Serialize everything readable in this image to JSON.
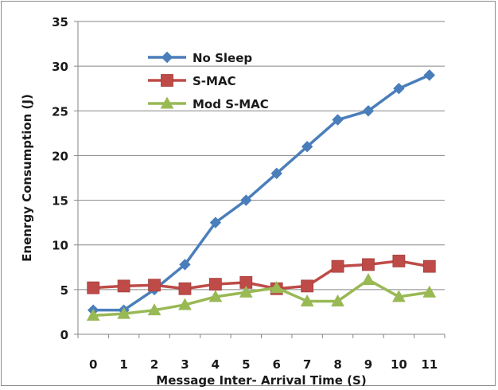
{
  "chart_data": {
    "type": "line",
    "title": "",
    "xlabel": "Message Inter- Arrival Time (S)",
    "ylabel": "Enenrgy Consumption (J)",
    "x": [
      0,
      1,
      2,
      3,
      4,
      5,
      6,
      7,
      8,
      9,
      10,
      11
    ],
    "ylim": [
      0,
      35
    ],
    "yticks": [
      0,
      5,
      10,
      15,
      20,
      25,
      30,
      35
    ],
    "ytick_labels": [
      "0",
      "5",
      "10",
      "15",
      "20",
      "25",
      "30",
      "35"
    ],
    "xtick_labels": [
      "0",
      "1",
      "2",
      "3",
      "4",
      "5",
      "6",
      "7",
      "8",
      "9",
      "10",
      "11"
    ],
    "grid": "horizontal",
    "legend_position": "top-left",
    "series": [
      {
        "name": "No Sleep",
        "color": "#4a7ebb",
        "marker": "diamond",
        "values": [
          2.7,
          2.7,
          5.0,
          7.8,
          12.5,
          15.0,
          18.0,
          21.0,
          24.0,
          25.0,
          27.5,
          29.0
        ]
      },
      {
        "name": "S-MAC",
        "color": "#be4b48",
        "marker": "square",
        "values": [
          5.2,
          5.4,
          5.5,
          5.1,
          5.6,
          5.8,
          5.1,
          5.4,
          7.6,
          7.8,
          8.2,
          7.6
        ]
      },
      {
        "name": "Mod S-MAC",
        "color": "#98b954",
        "marker": "triangle",
        "values": [
          2.1,
          2.3,
          2.7,
          3.3,
          4.2,
          4.7,
          5.2,
          3.7,
          3.7,
          6.1,
          4.2,
          4.7
        ]
      }
    ]
  }
}
